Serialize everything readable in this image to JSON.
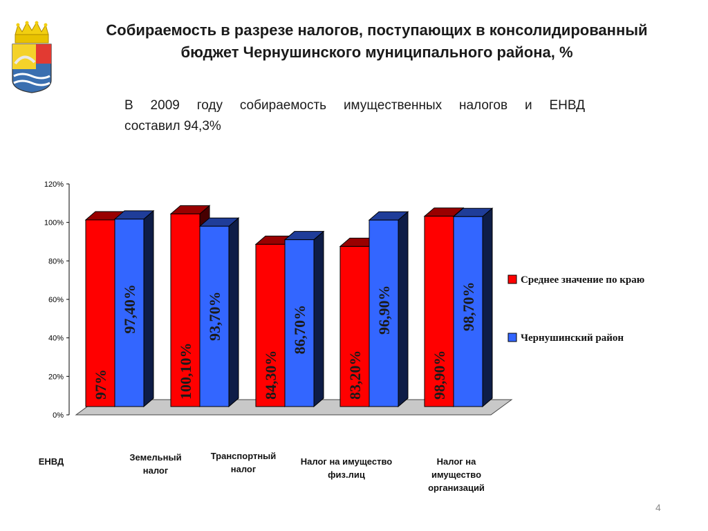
{
  "title": {
    "line1": "Собираемость в разрезе налогов, поступающих в консолидированный",
    "line2": "бюджет Чернушинского муниципального района, %"
  },
  "subtitle": {
    "line1": "В 2009 году собираемость имущественных налогов и ЕНВД",
    "line2": "составил 94,3%"
  },
  "chart_data": {
    "type": "bar",
    "categories": [
      "ЕНВД",
      "Земельный налог",
      "Транспортный налог",
      "Налог на имущество физ.лиц",
      "Налог на имущество организаций"
    ],
    "category_labels": [
      [
        "ЕНВД"
      ],
      [
        "Земельный",
        "налог"
      ],
      [
        "Транспортный",
        "налог"
      ],
      [
        "Налог на имущество",
        "физ.лиц"
      ],
      [
        "Налог на",
        "имущество",
        "организаций"
      ]
    ],
    "series": [
      {
        "name": "Среднее значение по краю",
        "color": "#ff0000",
        "values": [
          97,
          100.1,
          84.3,
          83.2,
          98.9
        ],
        "data_labels": [
          "97%",
          "100,10%",
          "84,30%",
          "83,20%",
          "98,90%"
        ]
      },
      {
        "name": "Чернушинский район",
        "color": "#3366ff",
        "values": [
          97.4,
          93.7,
          86.7,
          96.9,
          98.7
        ],
        "data_labels": [
          "97,40%",
          "93,70%",
          "86,70%",
          "96,90%",
          "98,70%"
        ]
      }
    ],
    "y_ticks": [
      "0%",
      "20%",
      "40%",
      "60%",
      "80%",
      "100%",
      "120%"
    ],
    "ylim": [
      0,
      120
    ],
    "legend": "right",
    "grid": false
  },
  "page_number": "4"
}
